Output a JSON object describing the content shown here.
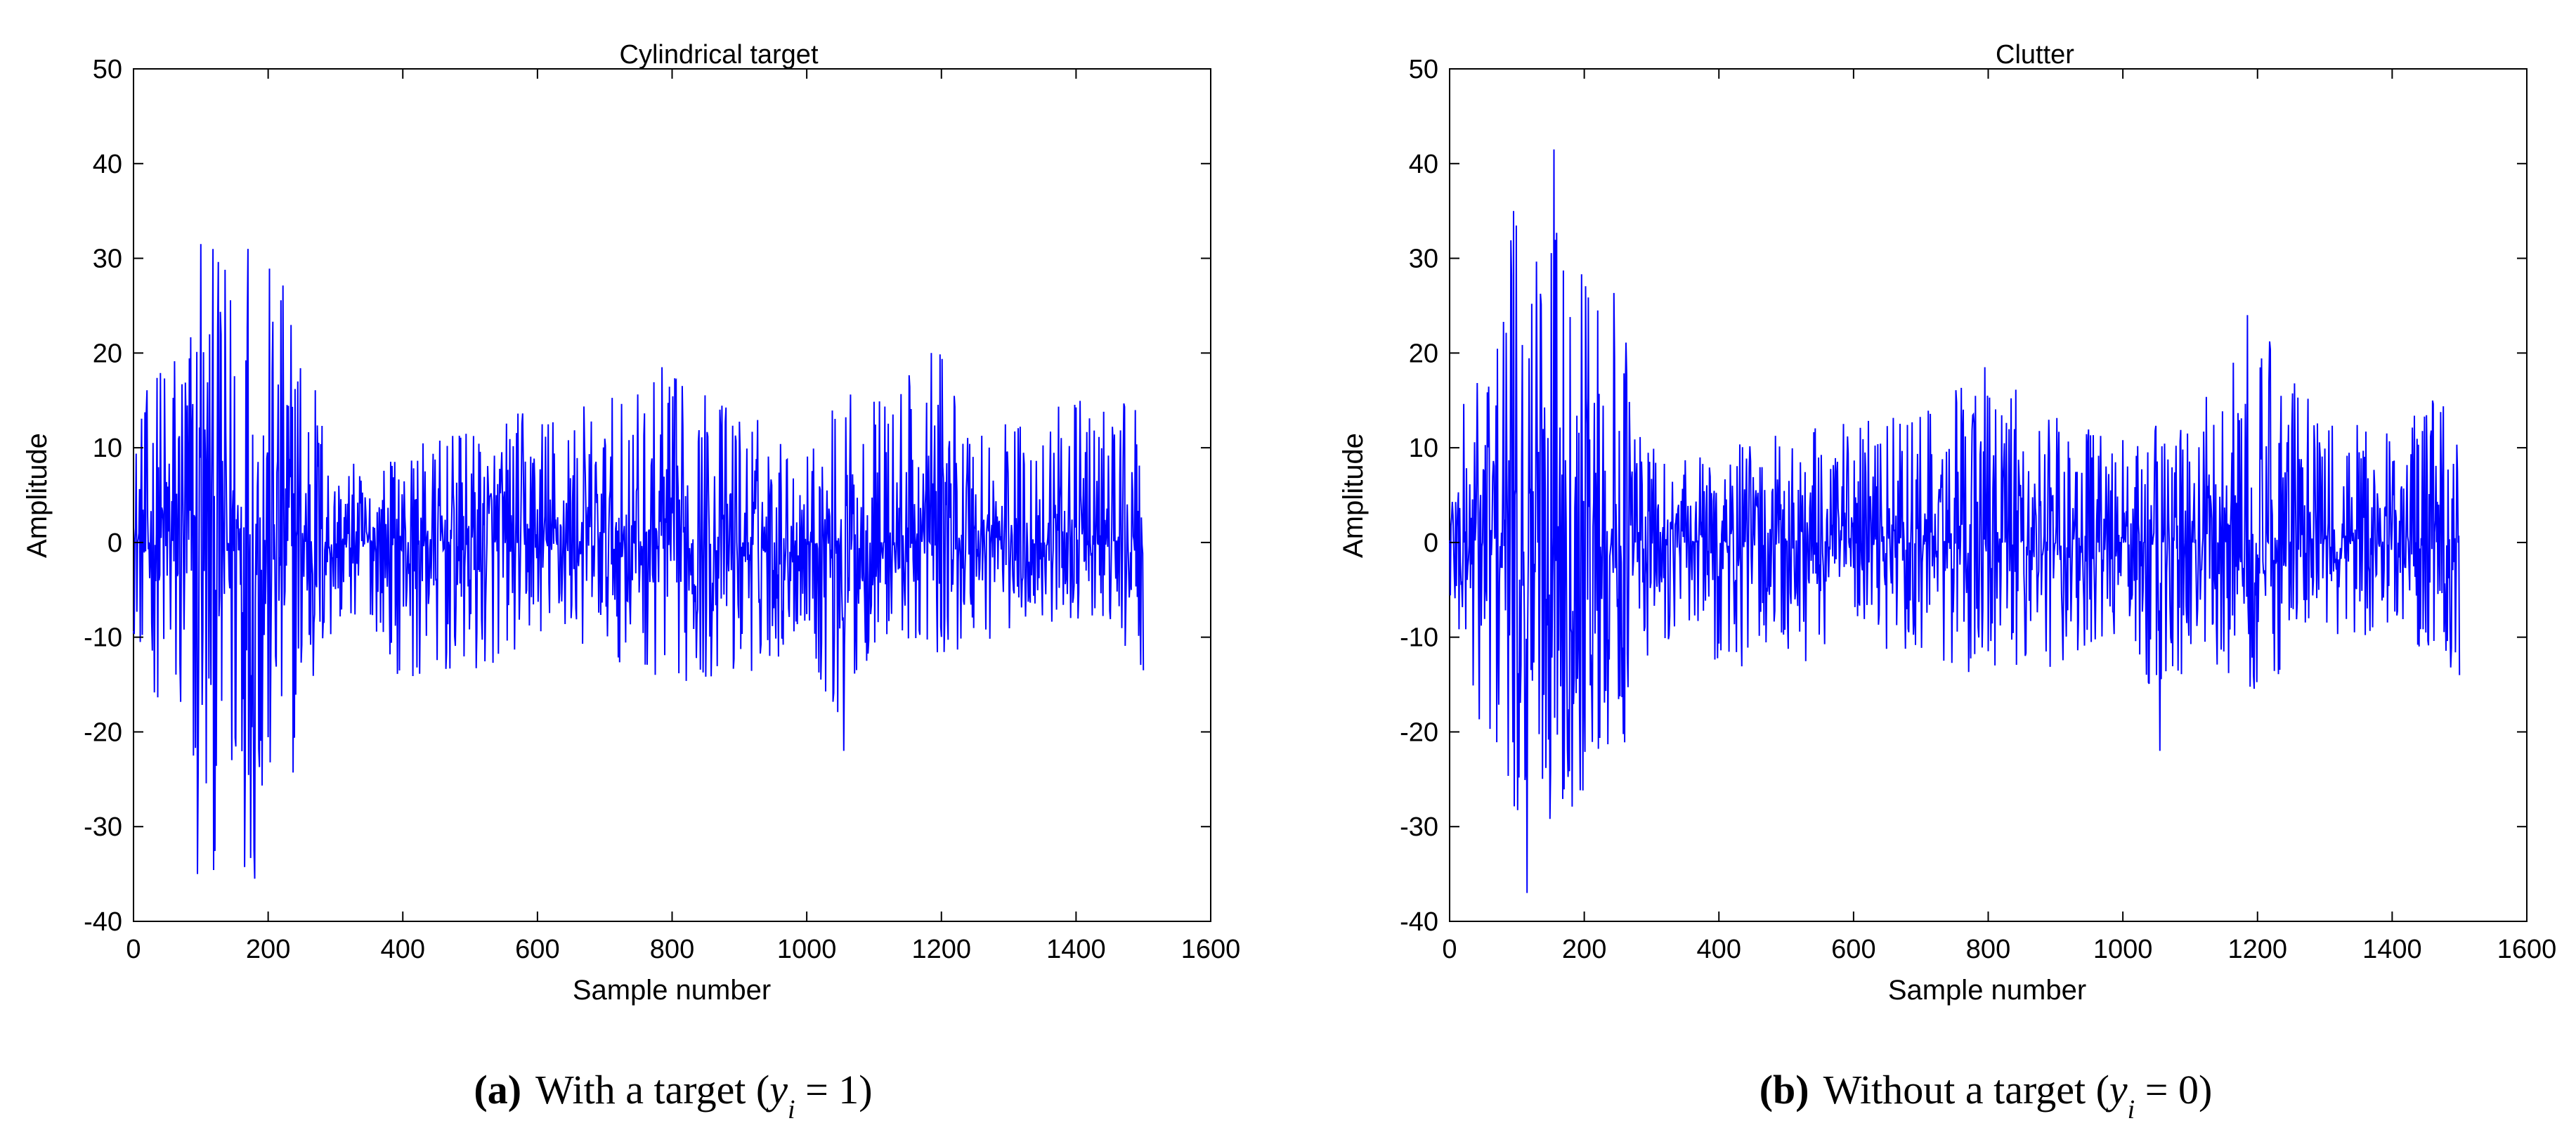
{
  "chart_data": [
    {
      "type": "line",
      "panel": "a",
      "title": "Cylindrical target",
      "xlabel": "Sample number",
      "ylabel": "Amplitude",
      "xlim": [
        0,
        1600
      ],
      "ylim": [
        -40,
        50
      ],
      "xticks": [
        0,
        200,
        400,
        600,
        800,
        1000,
        1200,
        1400,
        1600
      ],
      "yticks": [
        -40,
        -30,
        -20,
        -10,
        0,
        10,
        20,
        30,
        40,
        50
      ],
      "xtick_labels": [
        "0",
        "200",
        "400",
        "600",
        "800",
        "1000",
        "1200",
        "1400",
        "1600"
      ],
      "ytick_labels": [
        "-40",
        "-30",
        "-20",
        "-10",
        "0",
        "10",
        "20",
        "30",
        "40",
        "50"
      ],
      "grid": false,
      "color": "#0000ff",
      "series": [
        {
          "name": "Cylindrical target",
          "n_samples": 1500,
          "envelope_x": [
            0,
            50,
            100,
            150,
            200,
            250,
            300,
            350,
            400,
            500,
            600,
            700,
            800,
            900,
            1000,
            1050,
            1100,
            1200,
            1300,
            1400,
            1500
          ],
          "envelope_upper": [
            12,
            23,
            31,
            31,
            30,
            26,
            9,
            8,
            10,
            12,
            15,
            15,
            18,
            15,
            10,
            16,
            16,
            20,
            13,
            15,
            15
          ],
          "envelope_lower": [
            -10,
            -20,
            -35,
            -35,
            -33,
            -22,
            -10,
            -8,
            -15,
            -15,
            -10,
            -12,
            -15,
            -15,
            -10,
            -22,
            -11,
            -12,
            -10,
            -8,
            -14
          ],
          "spikes": [
            [
              100,
              31.5
            ],
            [
              170,
              31
            ],
            [
              95,
              -35
            ],
            [
              180,
              -35.5
            ],
            [
              785,
              18.5
            ],
            [
              1055,
              -22
            ],
            [
              1185,
              20
            ],
            [
              1500,
              -13.5
            ]
          ]
        }
      ],
      "caption": {
        "label": "(a)",
        "text": "With a target (",
        "math": "y",
        "sub": "i",
        "rest": " = 1)"
      }
    },
    {
      "type": "line",
      "panel": "b",
      "title": "Clutter",
      "xlabel": "Sample number",
      "ylabel": "Amplitude",
      "xlim": [
        0,
        1600
      ],
      "ylim": [
        -40,
        50
      ],
      "xticks": [
        0,
        200,
        400,
        600,
        800,
        1000,
        1200,
        1400,
        1600
      ],
      "yticks": [
        -40,
        -30,
        -20,
        -10,
        0,
        10,
        20,
        30,
        40,
        50
      ],
      "xtick_labels": [
        "0",
        "200",
        "400",
        "600",
        "800",
        "1000",
        "1200",
        "1400",
        "1600"
      ],
      "ytick_labels": [
        "-40",
        "-30",
        "-20",
        "-10",
        "0",
        "10",
        "20",
        "30",
        "40",
        "50"
      ],
      "grid": false,
      "color": "#0000ff",
      "series": [
        {
          "name": "Clutter",
          "n_samples": 1500,
          "envelope_x": [
            0,
            50,
            100,
            150,
            200,
            250,
            300,
            350,
            400,
            500,
            600,
            700,
            800,
            900,
            1000,
            1050,
            1100,
            1200,
            1300,
            1400,
            1500
          ],
          "envelope_upper": [
            10,
            22,
            35,
            41,
            30,
            28,
            10,
            9,
            10,
            12,
            13,
            14,
            18,
            14,
            11,
            13,
            14,
            24,
            13,
            15,
            15
          ],
          "envelope_lower": [
            -10,
            -22,
            -37,
            -30,
            -27,
            -25,
            -12,
            -9,
            -14,
            -15,
            -11,
            -12,
            -15,
            -13,
            -11,
            -22,
            -12,
            -16,
            -11,
            -9,
            -14
          ],
          "spikes": [
            [
              155,
              41.5
            ],
            [
              95,
              35
            ],
            [
              115,
              -37
            ],
            [
              795,
              18.5
            ],
            [
              1055,
              -22
            ],
            [
              1185,
              24
            ],
            [
              1500,
              -14
            ]
          ]
        }
      ],
      "caption": {
        "label": "(b)",
        "text": "Without a target (",
        "math": "y",
        "sub": "i",
        "rest": " = 0)"
      }
    }
  ]
}
